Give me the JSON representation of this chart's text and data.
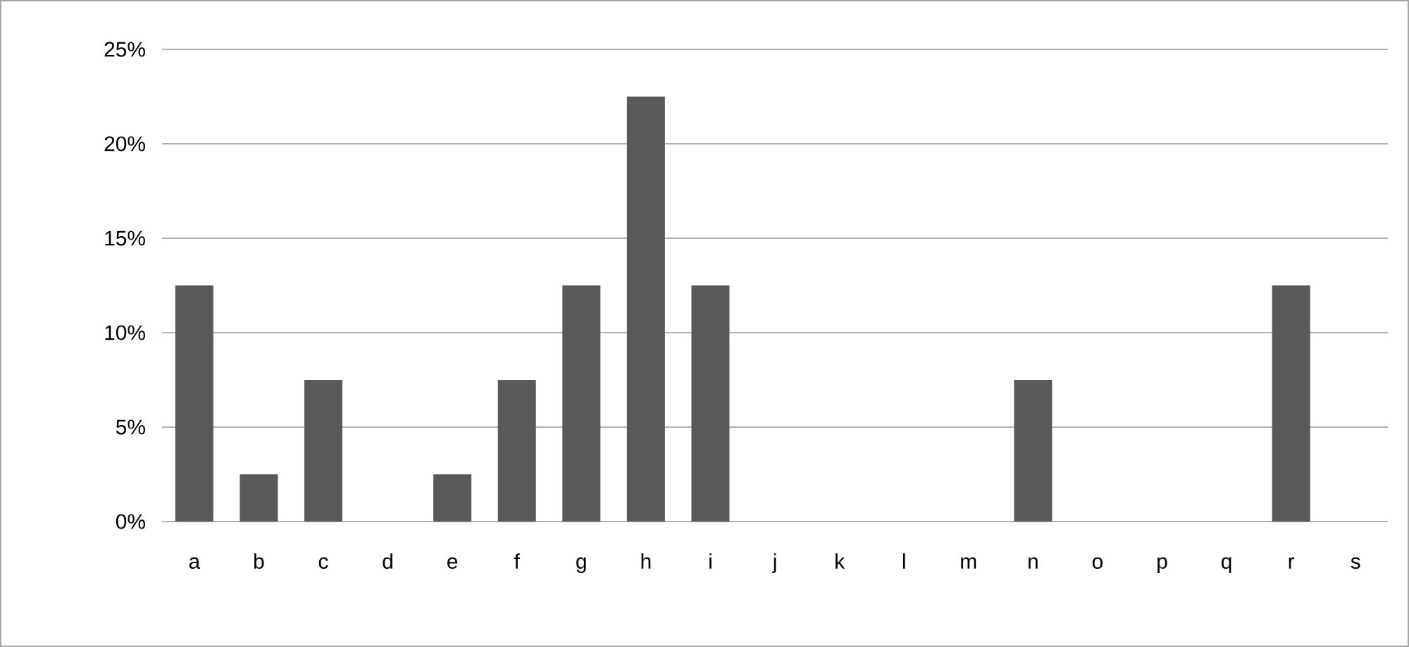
{
  "chart_data": {
    "type": "bar",
    "categories": [
      "a",
      "b",
      "c",
      "d",
      "e",
      "f",
      "g",
      "h",
      "i",
      "j",
      "k",
      "l",
      "m",
      "n",
      "o",
      "p",
      "q",
      "r",
      "s"
    ],
    "values": [
      12.5,
      2.5,
      7.5,
      0,
      2.5,
      7.5,
      12.5,
      22.5,
      12.5,
      0,
      0,
      0,
      0,
      7.5,
      0,
      0,
      0,
      12.5,
      0
    ],
    "color": "#595959",
    "ylim": [
      0,
      25
    ],
    "yticks": [
      {
        "value": 0,
        "label": "0%"
      },
      {
        "value": 5,
        "label": "5%"
      },
      {
        "value": 10,
        "label": "10%"
      },
      {
        "value": 15,
        "label": "15%"
      },
      {
        "value": 20,
        "label": "20%"
      },
      {
        "value": 25,
        "label": "25%"
      }
    ],
    "grid": "y"
  }
}
